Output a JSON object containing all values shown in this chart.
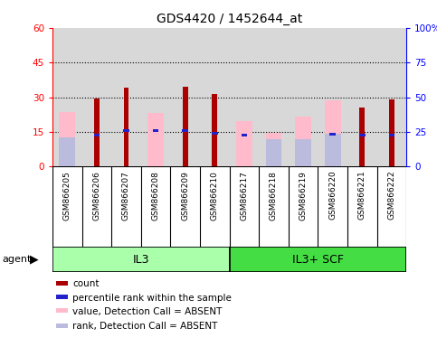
{
  "title": "GDS4420 / 1452644_at",
  "samples": [
    "GSM866205",
    "GSM866206",
    "GSM866207",
    "GSM866208",
    "GSM866209",
    "GSM866210",
    "GSM866217",
    "GSM866218",
    "GSM866219",
    "GSM866220",
    "GSM866221",
    "GSM866222"
  ],
  "red_bars": [
    0,
    29.5,
    34.0,
    0,
    34.5,
    31.5,
    0,
    0,
    0,
    0,
    25.5,
    29.0
  ],
  "pink_bars": [
    23.5,
    0,
    0,
    23.0,
    0,
    0,
    19.5,
    14.5,
    21.5,
    28.5,
    0,
    0
  ],
  "blue_vals": [
    0,
    13.5,
    15.5,
    15.5,
    15.5,
    14.5,
    13.5,
    0,
    0,
    14.0,
    13.5,
    13.5
  ],
  "lavender_bars": [
    12.5,
    0,
    0,
    0,
    0,
    0,
    0,
    12.0,
    12.0,
    14.0,
    0,
    0
  ],
  "ylim_left": [
    0,
    60
  ],
  "ylim_right": [
    0,
    100
  ],
  "yticks_left": [
    0,
    15,
    30,
    45,
    60
  ],
  "yticks_right": [
    0,
    25,
    50,
    75,
    100
  ],
  "ytick_labels_left": [
    "0",
    "15",
    "30",
    "45",
    "60"
  ],
  "ytick_labels_right": [
    "0",
    "25",
    "50",
    "75",
    "100%"
  ],
  "red_color": "#AA0000",
  "pink_color": "#FFBBCC",
  "blue_color": "#2222CC",
  "lavender_color": "#BBBBDD",
  "plot_bg": "#D8D8D8",
  "label_bg": "#D8D8D8",
  "il3_color": "#AAFFAA",
  "scf_color": "#44DD44",
  "legend_items": [
    {
      "label": "count",
      "color": "#AA0000"
    },
    {
      "label": "percentile rank within the sample",
      "color": "#2222CC"
    },
    {
      "label": "value, Detection Call = ABSENT",
      "color": "#FFBBCC"
    },
    {
      "label": "rank, Detection Call = ABSENT",
      "color": "#BBBBDD"
    }
  ]
}
